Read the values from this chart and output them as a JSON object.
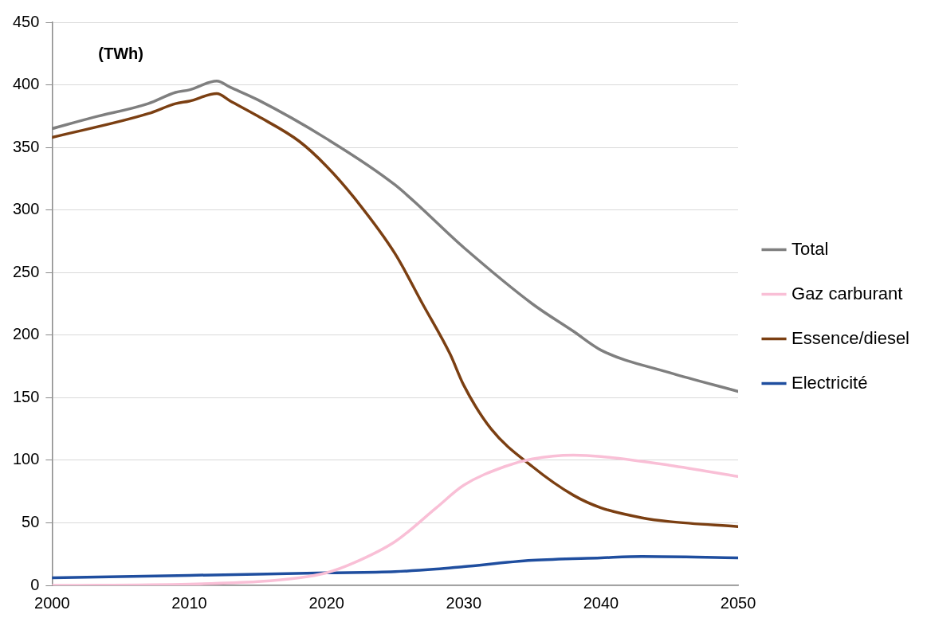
{
  "chart_data": {
    "type": "line",
    "annotations": [
      "(TWh)"
    ],
    "xlim": [
      2000,
      2050
    ],
    "xticks": [
      2000,
      2010,
      2020,
      2030,
      2040,
      2050
    ],
    "ylim": [
      0,
      450
    ],
    "yticks": [
      0,
      50,
      100,
      150,
      200,
      250,
      300,
      350,
      400,
      450
    ],
    "grid": "y",
    "legend": "right",
    "marker": "none",
    "line_style": "solid",
    "series": [
      {
        "name": "Total",
        "color": "#7f7f7f",
        "x": [
          2000,
          2003,
          2007,
          2009,
          2010,
          2012,
          2013,
          2015,
          2020,
          2025,
          2030,
          2035,
          2038,
          2040,
          2045,
          2050
        ],
        "values": [
          365,
          374,
          385,
          394,
          396,
          403,
          398,
          388,
          357,
          320,
          270,
          225,
          203,
          188,
          170,
          155
        ]
      },
      {
        "name": "Gaz carburant",
        "color": "#f9bfd6",
        "x": [
          2000,
          2010,
          2015,
          2018,
          2020,
          2022,
          2025,
          2028,
          2030,
          2033,
          2035,
          2038,
          2040,
          2045,
          2050
        ],
        "values": [
          0,
          1,
          3,
          6,
          10,
          18,
          35,
          62,
          80,
          95,
          101,
          104,
          103,
          96,
          87
        ]
      },
      {
        "name": "Essence/diesel",
        "color": "#7b3f12",
        "x": [
          2000,
          2007,
          2009,
          2010,
          2012,
          2013,
          2015,
          2018,
          2020,
          2022,
          2025,
          2027,
          2029,
          2030,
          2032,
          2035,
          2038,
          2040,
          2043,
          2045,
          2050
        ],
        "values": [
          358,
          377,
          385,
          387,
          393,
          387,
          375,
          355,
          335,
          310,
          265,
          225,
          185,
          160,
          125,
          95,
          72,
          62,
          54,
          51,
          47
        ]
      },
      {
        "name": "Electricité",
        "color": "#1f4e9f",
        "x": [
          2000,
          2010,
          2020,
          2025,
          2028,
          2030,
          2035,
          2040,
          2043,
          2050
        ],
        "values": [
          6,
          8,
          10,
          11,
          13,
          15,
          20,
          22,
          23,
          22
        ]
      }
    ]
  }
}
